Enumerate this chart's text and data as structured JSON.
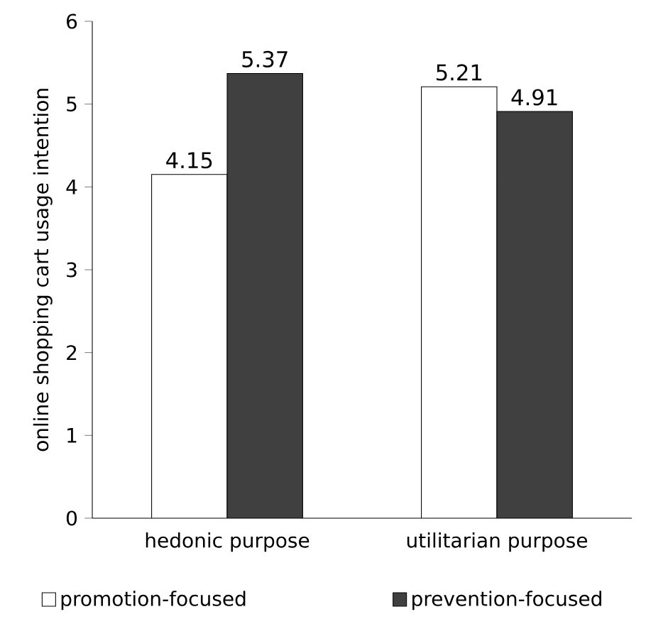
{
  "chart_data": {
    "type": "bar",
    "ylabel": "online shopping cart usage intention",
    "categories": [
      "hedonic purpose",
      "utilitarian purpose"
    ],
    "series": [
      {
        "name": "promotion-focused",
        "color": "#ffffff",
        "values": [
          4.15,
          5.21
        ]
      },
      {
        "name": "prevention-focused",
        "color": "#404040",
        "values": [
          5.37,
          4.91
        ]
      }
    ],
    "ylim": [
      0,
      6
    ],
    "yticks": [
      0,
      1,
      2,
      3,
      4,
      5,
      6
    ],
    "data_labels": true,
    "legend": "bottom"
  }
}
